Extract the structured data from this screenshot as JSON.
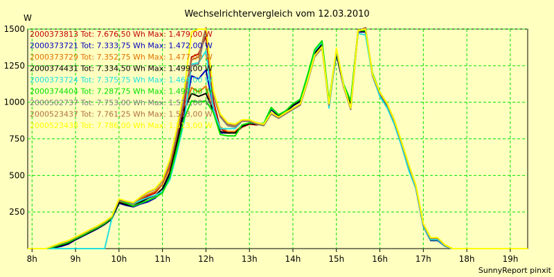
{
  "chart_data": {
    "type": "line",
    "title": "Wechselrichtervergleich vom 12.03.2010",
    "ylabel": "W",
    "xlabel": "",
    "footer": "SunnyReport pinxit",
    "ylim": [
      0,
      1500
    ],
    "xlim": [
      7.9,
      19.4
    ],
    "y_ticks": [
      250,
      500,
      750,
      1000,
      1250,
      1500
    ],
    "x_ticks": [
      {
        "value": 8,
        "label": "8h"
      },
      {
        "value": 9,
        "label": "9h"
      },
      {
        "value": 10,
        "label": "10h"
      },
      {
        "value": 11,
        "label": "11h"
      },
      {
        "value": 12,
        "label": "12h"
      },
      {
        "value": 13,
        "label": "13h"
      },
      {
        "value": 14,
        "label": "14h"
      },
      {
        "value": 15,
        "label": "15h"
      },
      {
        "value": 16,
        "label": "16h"
      },
      {
        "value": 17,
        "label": "17h"
      },
      {
        "value": 18,
        "label": "18h"
      },
      {
        "value": 19,
        "label": "19h"
      }
    ],
    "grid": true,
    "legend_position": "top-left",
    "x": [
      7.9,
      8.17,
      8.33,
      8.5,
      8.67,
      8.83,
      9.0,
      9.17,
      9.33,
      9.5,
      9.67,
      9.83,
      10.0,
      10.17,
      10.33,
      10.5,
      10.67,
      10.83,
      11.0,
      11.17,
      11.33,
      11.5,
      11.67,
      11.83,
      12.0,
      12.17,
      12.33,
      12.5,
      12.67,
      12.83,
      13.0,
      13.17,
      13.33,
      13.5,
      13.67,
      13.83,
      14.0,
      14.17,
      14.33,
      14.5,
      14.67,
      14.83,
      15.0,
      15.17,
      15.33,
      15.5,
      15.67,
      15.83,
      16.0,
      16.17,
      16.33,
      16.5,
      16.67,
      16.83,
      17.0,
      17.17,
      17.33,
      17.5,
      17.67,
      17.83,
      18.0,
      18.17,
      18.33,
      18.5,
      18.67,
      18.83,
      19.0,
      19.17,
      19.4
    ],
    "series": [
      {
        "name": "2000373813",
        "legend": "2000373813 Tot: 7.676,50 Wh Max: 1.479,00 W",
        "color": "#c00000",
        "values": [
          0,
          0,
          0,
          10,
          25,
          40,
          65,
          90,
          115,
          140,
          170,
          205,
          320,
          305,
          295,
          330,
          360,
          380,
          440,
          560,
          740,
          980,
          1310,
          1330,
          1450,
          1010,
          820,
          790,
          790,
          830,
          850,
          845,
          850,
          950,
          910,
          930,
          980,
          1010,
          1160,
          1340,
          1400,
          1000,
          1340,
          1110,
          1000,
          1490,
          1500,
          1190,
          1060,
          980,
          870,
          720,
          560,
          420,
          160,
          60,
          60,
          20,
          0,
          0,
          0,
          0,
          0,
          0,
          0,
          0,
          0,
          0,
          0
        ]
      },
      {
        "name": "2000373721",
        "legend": "2000373721 Tot: 7.333,75 Wh Max: 1.472,00 W",
        "color": "#0000c0",
        "values": [
          0,
          0,
          0,
          5,
          15,
          30,
          60,
          85,
          110,
          135,
          165,
          200,
          310,
          295,
          285,
          305,
          320,
          345,
          390,
          500,
          700,
          920,
          1180,
          1160,
          1220,
          960,
          790,
          790,
          790,
          840,
          860,
          850,
          845,
          950,
          905,
          930,
          975,
          1005,
          1150,
          1330,
          1390,
          990,
          1330,
          1100,
          990,
          1480,
          1480,
          1180,
          1050,
          970,
          860,
          710,
          550,
          410,
          150,
          55,
          55,
          15,
          0,
          0,
          0,
          0,
          0,
          0,
          0,
          0,
          0,
          0,
          0
        ]
      },
      {
        "name": "2000373729",
        "legend": "2000373729 Tot: 7.352,75 Wh Max: 1.477,00 W",
        "color": "#e07000",
        "values": [
          0,
          0,
          0,
          15,
          30,
          45,
          70,
          95,
          120,
          145,
          175,
          210,
          320,
          310,
          300,
          340,
          370,
          390,
          440,
          550,
          730,
          950,
          1100,
          1070,
          1110,
          930,
          830,
          800,
          800,
          840,
          860,
          850,
          850,
          955,
          910,
          935,
          985,
          1015,
          1165,
          1345,
          1405,
          1005,
          1345,
          1115,
          1005,
          1495,
          1490,
          1195,
          1065,
          985,
          875,
          725,
          565,
          425,
          165,
          65,
          65,
          25,
          0,
          0,
          0,
          0,
          0,
          0,
          0,
          0,
          0,
          0,
          0
        ]
      },
      {
        "name": "2000374431",
        "legend": "2000374431 Tot: 7.334,50 Wh Max: 1.499,00 W",
        "color": "#000000",
        "values": [
          0,
          0,
          0,
          8,
          20,
          35,
          62,
          88,
          112,
          138,
          168,
          202,
          315,
          300,
          290,
          318,
          345,
          362,
          410,
          520,
          720,
          950,
          1060,
          1040,
          1060,
          940,
          800,
          790,
          790,
          835,
          855,
          848,
          848,
          952,
          908,
          932,
          978,
          1008,
          1155,
          1335,
          1395,
          995,
          1335,
          1105,
          995,
          1485,
          1485,
          1185,
          1055,
          975,
          865,
          715,
          555,
          415,
          155,
          58,
          58,
          18,
          0,
          0,
          0,
          0,
          0,
          0,
          0,
          0,
          0,
          0,
          0
        ]
      },
      {
        "name": "2000373724",
        "legend": "2000373724 Tot: 7.375,75 Wh Max: 1.464,00 W",
        "color": "#20e0e0",
        "values": [
          0,
          0,
          0,
          0,
          0,
          0,
          0,
          0,
          0,
          0,
          0,
          200,
          340,
          320,
          305,
          330,
          350,
          365,
          390,
          470,
          650,
          870,
          1260,
          1270,
          1350,
          950,
          820,
          820,
          820,
          870,
          880,
          860,
          850,
          960,
          915,
          940,
          990,
          1020,
          1170,
          1350,
          1410,
          960,
          1350,
          1120,
          1010,
          1470,
          1460,
          1180,
          1040,
          960,
          850,
          700,
          530,
          410,
          150,
          60,
          60,
          15,
          0,
          0,
          0,
          0,
          0,
          0,
          0,
          0,
          0,
          0,
          0
        ]
      },
      {
        "name": "2000374404",
        "legend": "2000374404 Tot: 7.287,75 Wh Max: 1.497,00 W",
        "color": "#00e000",
        "values": [
          0,
          0,
          0,
          12,
          28,
          42,
          68,
          92,
          118,
          142,
          172,
          208,
          330,
          310,
          290,
          310,
          330,
          350,
          380,
          490,
          680,
          890,
          1010,
          1000,
          1010,
          930,
          780,
          770,
          770,
          845,
          860,
          855,
          855,
          965,
          915,
          940,
          990,
          1020,
          1180,
          1360,
          1420,
          1010,
          1360,
          1120,
          1010,
          1490,
          1490,
          1200,
          1070,
          990,
          880,
          730,
          570,
          430,
          170,
          70,
          70,
          25,
          0,
          0,
          0,
          0,
          0,
          0,
          0,
          0,
          0,
          0,
          0
        ]
      },
      {
        "name": "2000502737",
        "legend": "2000502737 Tot: 7.753,00 Wh Max: 1.512,00 W",
        "color": "#808080",
        "values": [
          0,
          0,
          0,
          18,
          35,
          50,
          75,
          100,
          125,
          150,
          180,
          215,
          330,
          320,
          310,
          350,
          385,
          405,
          460,
          590,
          780,
          1030,
          1250,
          1260,
          1500,
          1050,
          900,
          840,
          830,
          870,
          870,
          850,
          840,
          920,
          890,
          920,
          950,
          980,
          1130,
          1310,
          1370,
          980,
          1360,
          1100,
          950,
          1480,
          1510,
          1180,
          1060,
          980,
          870,
          720,
          560,
          420,
          160,
          70,
          70,
          20,
          0,
          0,
          0,
          0,
          0,
          0,
          0,
          0,
          0,
          0,
          0
        ]
      },
      {
        "name": "2000523437",
        "legend": "2000523437 Tot: 7.761,25 Wh Max: 1.513,00 W",
        "color": "#b07040",
        "values": [
          0,
          0,
          0,
          20,
          38,
          52,
          78,
          102,
          128,
          152,
          182,
          218,
          335,
          322,
          312,
          352,
          388,
          408,
          465,
          600,
          800,
          1060,
          1290,
          1310,
          1510,
          1060,
          910,
          850,
          840,
          875,
          875,
          855,
          845,
          925,
          895,
          925,
          955,
          985,
          1135,
          1315,
          1375,
          985,
          1365,
          1105,
          955,
          1485,
          1510,
          1185,
          1065,
          985,
          875,
          725,
          565,
          425,
          165,
          72,
          72,
          22,
          0,
          0,
          0,
          0,
          0,
          0,
          0,
          0,
          0,
          0,
          0
        ]
      },
      {
        "name": "2000523438",
        "legend": "2000523438 Tot: 7.786,00 Wh Max: 1.513,00 W",
        "color": "#ffff00",
        "values": [
          0,
          0,
          0,
          22,
          40,
          55,
          80,
          105,
          130,
          155,
          185,
          220,
          340,
          325,
          315,
          355,
          390,
          410,
          470,
          610,
          820,
          1080,
          1480,
          1500,
          1500,
          1080,
          920,
          860,
          850,
          880,
          880,
          860,
          850,
          930,
          900,
          930,
          960,
          990,
          1140,
          1320,
          1380,
          990,
          1370,
          1110,
          960,
          1490,
          1500,
          1190,
          1070,
          990,
          880,
          730,
          570,
          430,
          170,
          75,
          75,
          25,
          0,
          0,
          0,
          0,
          0,
          0,
          0,
          0,
          0,
          0,
          0
        ]
      }
    ]
  },
  "colors": {
    "background": "#ffffc0",
    "plot_area": "#ffffc0",
    "grid": "#00e000",
    "axis": "#000000"
  }
}
